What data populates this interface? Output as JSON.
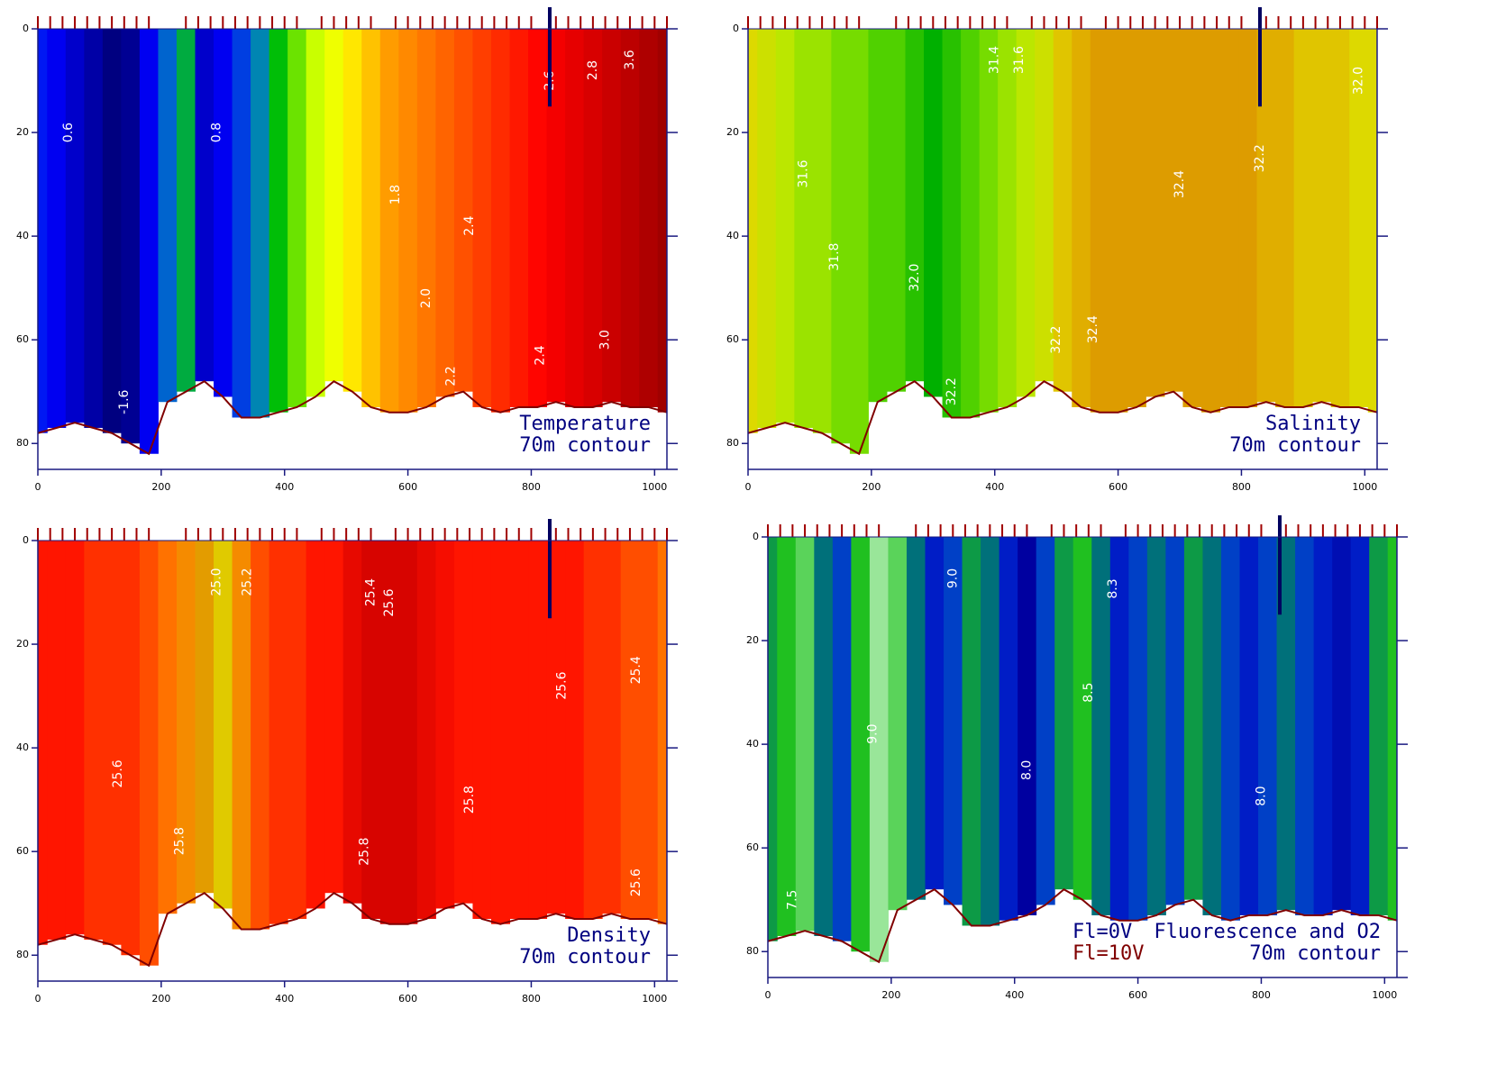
{
  "chart_data": [
    {
      "type": "section",
      "annotation": [
        "Temperature",
        "70m contour"
      ],
      "x": [
        0,
        30,
        60,
        90,
        120,
        150,
        180,
        210,
        240,
        270,
        300,
        330,
        360,
        390,
        420,
        450,
        480,
        510,
        540,
        570,
        600,
        630,
        660,
        690,
        720,
        750,
        780,
        810,
        840,
        870,
        900,
        930,
        960,
        990,
        1020
      ],
      "values": [
        -0.8,
        -1.0,
        -1.2,
        -1.4,
        -1.6,
        -1.5,
        -1.0,
        -0.4,
        0.2,
        -1.2,
        -1.0,
        -0.6,
        -0.2,
        0.4,
        0.8,
        1.2,
        1.6,
        1.9,
        2.1,
        2.3,
        2.4,
        2.5,
        2.6,
        2.7,
        2.8,
        2.9,
        3.0,
        3.1,
        3.2,
        3.3,
        3.4,
        3.5,
        3.6,
        3.7,
        3.8
      ],
      "bottom": [
        78,
        77,
        76,
        77,
        78,
        80,
        82,
        72,
        70,
        68,
        71,
        75,
        75,
        74,
        73,
        71,
        68,
        70,
        73,
        74,
        74,
        73,
        71,
        70,
        73,
        74,
        73,
        73,
        72,
        73,
        73,
        72,
        73,
        73,
        74
      ],
      "vlim": [
        -1.6,
        3.8
      ],
      "colorscale": [
        "#000080",
        "#0000ff",
        "#0080c0",
        "#00c000",
        "#c0ff00",
        "#ffff00",
        "#ff8000",
        "#ff0000",
        "#a00000"
      ],
      "stations": [
        0,
        20,
        40,
        60,
        80,
        100,
        120,
        140,
        160,
        180,
        240,
        260,
        280,
        300,
        320,
        340,
        360,
        380,
        400,
        420,
        460,
        480,
        500,
        520,
        540,
        580,
        600,
        620,
        640,
        660,
        680,
        700,
        720,
        740,
        760,
        780,
        800,
        840,
        860,
        880,
        900,
        920,
        940,
        960,
        980,
        1000,
        1020
      ],
      "marker": {
        "x": 830,
        "depth": 15
      },
      "contour_labels": [
        {
          "label": "2.6",
          "x": 830,
          "y": 10
        },
        {
          "label": "2.8",
          "x": 900,
          "y": 8
        },
        {
          "label": "3.6",
          "x": 960,
          "y": 6
        },
        {
          "label": "3.0",
          "x": 920,
          "y": 60
        },
        {
          "label": "2.4",
          "x": 815,
          "y": 63
        },
        {
          "label": "2.2",
          "x": 670,
          "y": 67
        },
        {
          "label": "2.0",
          "x": 630,
          "y": 52
        },
        {
          "label": "1.8",
          "x": 580,
          "y": 32
        },
        {
          "label": "0.6",
          "x": 50,
          "y": 20
        },
        {
          "label": "0.8",
          "x": 290,
          "y": 20
        },
        {
          "label": "-1.6",
          "x": 140,
          "y": 72
        },
        {
          "label": "2.4",
          "x": 700,
          "y": 38
        }
      ],
      "xlim": [
        0,
        1020
      ],
      "xticks": [
        0,
        200,
        400,
        600,
        800,
        1000
      ],
      "ylim": [
        0,
        85
      ],
      "yticks": [
        0,
        20,
        40,
        60,
        80
      ],
      "y_reversed": true
    },
    {
      "type": "section",
      "annotation": [
        "Salinity",
        "70m contour"
      ],
      "x": [
        0,
        30,
        60,
        90,
        120,
        150,
        180,
        210,
        240,
        270,
        300,
        330,
        360,
        390,
        420,
        450,
        480,
        510,
        540,
        570,
        600,
        630,
        660,
        690,
        720,
        750,
        780,
        810,
        840,
        870,
        900,
        930,
        960,
        990,
        1020
      ],
      "values": [
        32.1,
        32.0,
        31.9,
        31.8,
        31.8,
        31.7,
        31.7,
        31.6,
        31.6,
        31.5,
        31.4,
        31.5,
        31.6,
        31.7,
        31.8,
        31.9,
        32.0,
        32.2,
        32.3,
        32.4,
        32.4,
        32.4,
        32.4,
        32.4,
        32.4,
        32.4,
        32.4,
        32.4,
        32.3,
        32.3,
        32.2,
        32.2,
        32.2,
        32.1,
        32.1
      ],
      "bottom": [
        78,
        77,
        76,
        77,
        78,
        80,
        82,
        72,
        70,
        68,
        71,
        75,
        75,
        74,
        73,
        71,
        68,
        70,
        73,
        74,
        74,
        73,
        71,
        70,
        73,
        74,
        73,
        73,
        72,
        73,
        73,
        72,
        73,
        73,
        74
      ],
      "vlim": [
        31.4,
        32.6
      ],
      "colorscale": [
        "#00b000",
        "#60d800",
        "#b8e800",
        "#e0d800",
        "#e0a000",
        "#d08800"
      ],
      "marker": {
        "x": 830,
        "depth": 15
      },
      "contour_labels": [
        {
          "label": "32.0",
          "x": 990,
          "y": 10
        },
        {
          "label": "32.2",
          "x": 830,
          "y": 25
        },
        {
          "label": "32.4",
          "x": 700,
          "y": 30
        },
        {
          "label": "31.4",
          "x": 400,
          "y": 6
        },
        {
          "label": "31.6",
          "x": 440,
          "y": 6
        },
        {
          "label": "31.6",
          "x": 90,
          "y": 28
        },
        {
          "label": "31.8",
          "x": 140,
          "y": 44
        },
        {
          "label": "32.0",
          "x": 270,
          "y": 48
        },
        {
          "label": "32.2",
          "x": 330,
          "y": 70
        },
        {
          "label": "32.4",
          "x": 560,
          "y": 58
        },
        {
          "label": "32.2",
          "x": 500,
          "y": 60
        }
      ],
      "xlim": [
        0,
        1020
      ],
      "xticks": [
        0,
        200,
        400,
        600,
        800,
        1000
      ],
      "ylim": [
        0,
        85
      ],
      "yticks": [
        0,
        20,
        40,
        60,
        80
      ],
      "y_reversed": true
    },
    {
      "type": "section",
      "annotation": [
        "Density",
        "70m contour"
      ],
      "x": [
        0,
        30,
        60,
        90,
        120,
        150,
        180,
        210,
        240,
        270,
        300,
        330,
        360,
        390,
        420,
        450,
        480,
        510,
        540,
        570,
        600,
        630,
        660,
        690,
        720,
        750,
        780,
        810,
        840,
        870,
        900,
        930,
        960,
        990,
        1020
      ],
      "values": [
        25.7,
        25.7,
        25.7,
        25.6,
        25.6,
        25.6,
        25.5,
        25.4,
        25.3,
        25.2,
        25.1,
        25.3,
        25.5,
        25.6,
        25.6,
        25.7,
        25.7,
        25.8,
        25.85,
        25.85,
        25.85,
        25.8,
        25.75,
        25.7,
        25.7,
        25.7,
        25.7,
        25.7,
        25.7,
        25.7,
        25.6,
        25.6,
        25.5,
        25.5,
        25.4
      ],
      "bottom": [
        78,
        77,
        76,
        77,
        78,
        80,
        82,
        72,
        70,
        68,
        71,
        75,
        75,
        74,
        73,
        71,
        68,
        70,
        73,
        74,
        74,
        73,
        71,
        70,
        73,
        74,
        73,
        73,
        72,
        73,
        73,
        72,
        73,
        73,
        74
      ],
      "vlim": [
        25.0,
        25.9
      ],
      "colorscale": [
        "#e0ff00",
        "#e0a000",
        "#ff8000",
        "#ff4000",
        "#ff1000",
        "#c80000"
      ],
      "marker": {
        "x": 830,
        "depth": 15
      },
      "contour_labels": [
        {
          "label": "25.0",
          "x": 290,
          "y": 8
        },
        {
          "label": "25.2",
          "x": 340,
          "y": 8
        },
        {
          "label": "25.4",
          "x": 540,
          "y": 10
        },
        {
          "label": "25.6",
          "x": 570,
          "y": 12
        },
        {
          "label": "25.8",
          "x": 700,
          "y": 50
        },
        {
          "label": "25.8",
          "x": 530,
          "y": 60
        },
        {
          "label": "25.6",
          "x": 850,
          "y": 28
        },
        {
          "label": "25.4",
          "x": 970,
          "y": 25
        },
        {
          "label": "25.6",
          "x": 970,
          "y": 66
        },
        {
          "label": "25.6",
          "x": 130,
          "y": 45
        },
        {
          "label": "25.8",
          "x": 230,
          "y": 58
        }
      ],
      "xlim": [
        0,
        1020
      ],
      "xticks": [
        0,
        200,
        400,
        600,
        800,
        1000
      ],
      "ylim": [
        0,
        85
      ],
      "yticks": [
        0,
        20,
        40,
        60,
        80
      ],
      "y_reversed": true
    },
    {
      "type": "section",
      "annotation": [
        "Fluorescence and O2",
        "70m contour"
      ],
      "legend": [
        {
          "text": "Fl=0V",
          "color": "#000080"
        },
        {
          "text": "Fl=10V",
          "color": "#800000"
        }
      ],
      "x": [
        0,
        30,
        60,
        90,
        120,
        150,
        180,
        210,
        240,
        270,
        300,
        330,
        360,
        390,
        420,
        450,
        480,
        510,
        540,
        570,
        600,
        630,
        660,
        690,
        720,
        750,
        780,
        810,
        840,
        870,
        900,
        930,
        960,
        990,
        1020
      ],
      "values": [
        4,
        5,
        6,
        3,
        2,
        5,
        7,
        6,
        3,
        1,
        2,
        4,
        3,
        1,
        0,
        2,
        4,
        5,
        3,
        1,
        2,
        3,
        2,
        4,
        3,
        2,
        1,
        2,
        3,
        2,
        1,
        0.5,
        1,
        4,
        5
      ],
      "bottom": [
        78,
        77,
        76,
        77,
        78,
        80,
        82,
        72,
        70,
        68,
        71,
        75,
        75,
        74,
        73,
        71,
        68,
        70,
        73,
        74,
        74,
        73,
        71,
        70,
        73,
        74,
        73,
        73,
        72,
        73,
        73,
        72,
        73,
        73,
        74
      ],
      "vlim": [
        0,
        10
      ],
      "colorscale": [
        "#0000a0",
        "#0030e0",
        "#008060",
        "#20c020",
        "#80e080",
        "#ffffff",
        "#f0c000"
      ],
      "marker": {
        "x": 830,
        "depth": 15
      },
      "contour_labels": [
        {
          "label": "9.0",
          "x": 300,
          "y": 8
        },
        {
          "label": "8.0",
          "x": 420,
          "y": 45
        },
        {
          "label": "8.5",
          "x": 520,
          "y": 30
        },
        {
          "label": "7.5",
          "x": 40,
          "y": 70
        },
        {
          "label": "8.0",
          "x": 800,
          "y": 50
        },
        {
          "label": "8.3",
          "x": 560,
          "y": 10
        },
        {
          "label": "9.0",
          "x": 170,
          "y": 38
        }
      ],
      "xlim": [
        0,
        1020
      ],
      "xticks": [
        0,
        200,
        400,
        600,
        800,
        1000
      ],
      "ylim": [
        0,
        85
      ],
      "yticks": [
        0,
        20,
        40,
        60,
        80
      ],
      "y_reversed": true
    }
  ]
}
